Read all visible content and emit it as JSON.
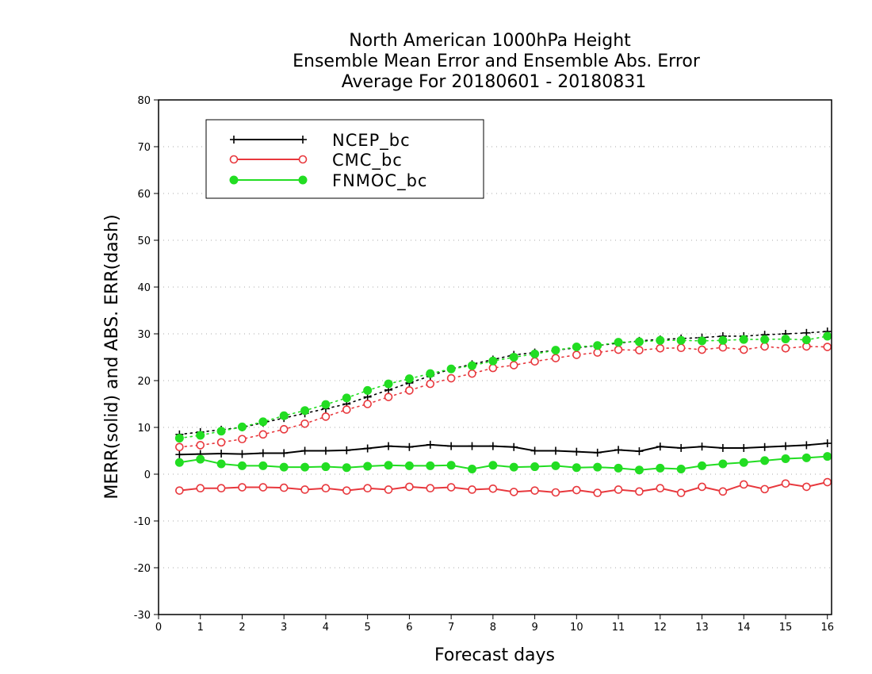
{
  "chart_data": {
    "type": "line",
    "title": [
      "North American 1000hPa Height",
      "Ensemble Mean Error and Ensemble Abs. Error",
      "Average For 20180601 - 20180831"
    ],
    "xlabel": "Forecast days",
    "ylabel": "MERR(solid) and ABS. ERR(dash)",
    "xlim": [
      0,
      16.1
    ],
    "ylim": [
      -30,
      80
    ],
    "xticks": [
      0,
      1,
      2,
      3,
      4,
      5,
      6,
      7,
      8,
      9,
      10,
      11,
      12,
      13,
      14,
      15,
      16
    ],
    "yticks": [
      -30,
      -20,
      -10,
      0,
      10,
      20,
      30,
      40,
      50,
      60,
      70,
      80
    ],
    "grid": "horizontal dotted",
    "legend_position": "top-left",
    "x": [
      0.5,
      1,
      1.5,
      2,
      2.5,
      3,
      3.5,
      4,
      4.5,
      5,
      5.5,
      6,
      6.5,
      7,
      7.5,
      8,
      8.5,
      9,
      9.5,
      10,
      10.5,
      11,
      11.5,
      12,
      12.5,
      13,
      13.5,
      14,
      14.5,
      15,
      15.5,
      16
    ],
    "series": [
      {
        "name": "NCEP_bc",
        "color": "#000000",
        "marker": "plus",
        "merr": [
          4.2,
          4.3,
          4.4,
          4.3,
          4.5,
          4.5,
          5.0,
          5.0,
          5.1,
          5.5,
          6.0,
          5.8,
          6.3,
          6.0,
          6.0,
          6.0,
          5.8,
          5.0,
          5.0,
          4.8,
          4.6,
          5.2,
          4.9,
          5.9,
          5.6,
          5.9,
          5.6,
          5.6,
          5.8,
          6.0,
          6.2,
          6.6
        ],
        "abs_err": [
          8.5,
          9.0,
          9.5,
          10.0,
          11.0,
          12.0,
          13.0,
          14.0,
          15.0,
          16.5,
          18.0,
          19.5,
          21.0,
          22.5,
          23.5,
          24.5,
          25.5,
          26.0,
          26.5,
          27.0,
          27.5,
          28.0,
          28.5,
          28.8,
          29.0,
          29.2,
          29.5,
          29.5,
          29.8,
          30.0,
          30.2,
          30.5
        ]
      },
      {
        "name": "CMC_bc",
        "color": "#e8383d",
        "marker": "open-circle",
        "merr": [
          -3.5,
          -3.0,
          -3.0,
          -2.8,
          -2.8,
          -2.9,
          -3.3,
          -3.0,
          -3.5,
          -3.0,
          -3.3,
          -2.7,
          -3.0,
          -2.8,
          -3.3,
          -3.1,
          -3.8,
          -3.5,
          -3.9,
          -3.4,
          -4.0,
          -3.3,
          -3.7,
          -3.0,
          -4.0,
          -2.7,
          -3.7,
          -2.2,
          -3.2,
          -2.0,
          -2.7,
          -1.7
        ],
        "abs_err": [
          5.8,
          6.2,
          6.8,
          7.5,
          8.5,
          9.6,
          10.8,
          12.3,
          13.8,
          15.0,
          16.5,
          17.9,
          19.3,
          20.5,
          21.5,
          22.7,
          23.3,
          24.1,
          24.8,
          25.5,
          26.0,
          26.6,
          26.5,
          26.9,
          27.0,
          26.6,
          27.1,
          26.6,
          27.3,
          26.9,
          27.3,
          27.2
        ]
      },
      {
        "name": "FNMOC_bc",
        "color": "#22dd22",
        "marker": "filled-circle",
        "merr": [
          2.5,
          3.2,
          2.2,
          1.8,
          1.8,
          1.5,
          1.5,
          1.6,
          1.4,
          1.7,
          1.9,
          1.8,
          1.8,
          1.9,
          1.1,
          1.9,
          1.5,
          1.6,
          1.8,
          1.4,
          1.5,
          1.3,
          0.9,
          1.3,
          1.1,
          1.8,
          2.2,
          2.5,
          2.9,
          3.3,
          3.5,
          3.8
        ],
        "abs_err": [
          7.7,
          8.3,
          9.2,
          10.1,
          11.2,
          12.5,
          13.6,
          14.9,
          16.3,
          17.9,
          19.3,
          20.4,
          21.5,
          22.5,
          23.2,
          24.2,
          25.0,
          25.7,
          26.5,
          27.2,
          27.5,
          28.2,
          28.3,
          28.6,
          28.6,
          28.5,
          28.6,
          28.8,
          28.8,
          28.9,
          28.7,
          29.5
        ]
      }
    ]
  }
}
